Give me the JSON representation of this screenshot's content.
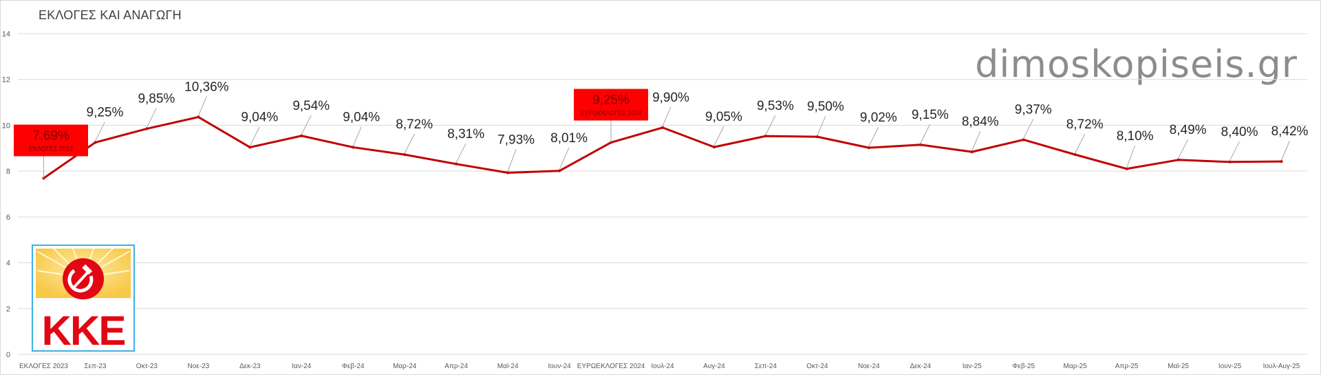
{
  "chart_data": {
    "type": "line",
    "title": "ΕΚΛΟΓΕΣ ΚΑΙ ΑΝΑΓΩΓΗ",
    "xlabel": "",
    "ylabel": "",
    "ylim": [
      0,
      14
    ],
    "yticks": [
      "0",
      "2",
      "4",
      "6",
      "8",
      "10",
      "12",
      "14"
    ],
    "grid": true,
    "legend": "none",
    "line_color": "#c00000",
    "callout_color": "#ff0000",
    "categories": [
      "ΕΚΛΟΓΕΣ 2023",
      "Σεπ-23",
      "Οκτ-23",
      "Νοε-23",
      "Δεκ-23",
      "Ιαν-24",
      "Φεβ-24",
      "Μαρ-24",
      "Απρ-24",
      "Μαϊ-24",
      "Ιουν-24",
      "ΕΥΡΩΕΚΛΟΓΕΣ 2024",
      "Ιουλ-24",
      "Αυγ-24",
      "Σεπ-24",
      "Οκτ-24",
      "Νοε-24",
      "Δεκ-24",
      "Ιαν-25",
      "Φεβ-25",
      "Μαρ-25",
      "Απρ-25",
      "Μαϊ-25",
      "Ιουν-25",
      "Ιουλ-Αυγ-25"
    ],
    "values": [
      7.69,
      9.25,
      9.85,
      10.36,
      9.04,
      9.54,
      9.04,
      8.72,
      8.31,
      7.93,
      8.01,
      9.25,
      9.9,
      9.05,
      9.53,
      9.5,
      9.02,
      9.15,
      8.84,
      9.37,
      8.72,
      8.1,
      8.49,
      8.4,
      8.42
    ],
    "data_labels": [
      "7,69%",
      "9,25%",
      "9,85%",
      "10,36%",
      "9,04%",
      "9,54%",
      "9,04%",
      "8,72%",
      "8,31%",
      "7,93%",
      "8,01%",
      "9,25%",
      "9,90%",
      "9,05%",
      "9,53%",
      "9,50%",
      "9,02%",
      "9,15%",
      "8,84%",
      "9,37%",
      "8,72%",
      "8,10%",
      "8,49%",
      "8,40%",
      "8,42%"
    ],
    "callouts": [
      {
        "index": 0,
        "label": "7,69%",
        "sublabel": "ΕΚΛΟΓΕΣ 2023"
      },
      {
        "index": 11,
        "label": "9,25%",
        "sublabel": "ΕΥΡΩΕΚΛΟΓΕΣ 2024"
      }
    ]
  },
  "watermark": "dimoskopiseis.gr",
  "logo": {
    "text": "ΚΚΕ",
    "colors": {
      "red": "#e30613",
      "sun": "#f7c948",
      "frame": "#3eb0e4"
    }
  }
}
